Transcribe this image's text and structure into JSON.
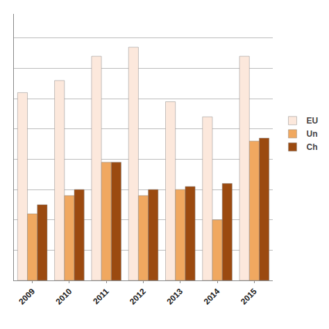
{
  "chart_data": {
    "type": "bar",
    "categories": [
      "2009",
      "2010",
      "2011",
      "2012",
      "2013",
      "2014",
      "2015"
    ],
    "series": [
      {
        "name": "EU",
        "color": "#fce8dc",
        "values": [
          310,
          330,
          370,
          385,
          295,
          270,
          370
        ]
      },
      {
        "name": "Un",
        "color": "#f0a860",
        "values": [
          110,
          140,
          195,
          140,
          150,
          100,
          230
        ]
      },
      {
        "name": "Ch",
        "color": "#9b4a10",
        "values": [
          125,
          150,
          195,
          150,
          155,
          160,
          235
        ]
      }
    ],
    "ylim": [
      0,
      440
    ],
    "yticks": [
      0,
      50,
      100,
      150,
      200,
      250,
      300,
      350,
      400
    ],
    "grid": true,
    "legend": "right",
    "tick_labels": "x"
  }
}
